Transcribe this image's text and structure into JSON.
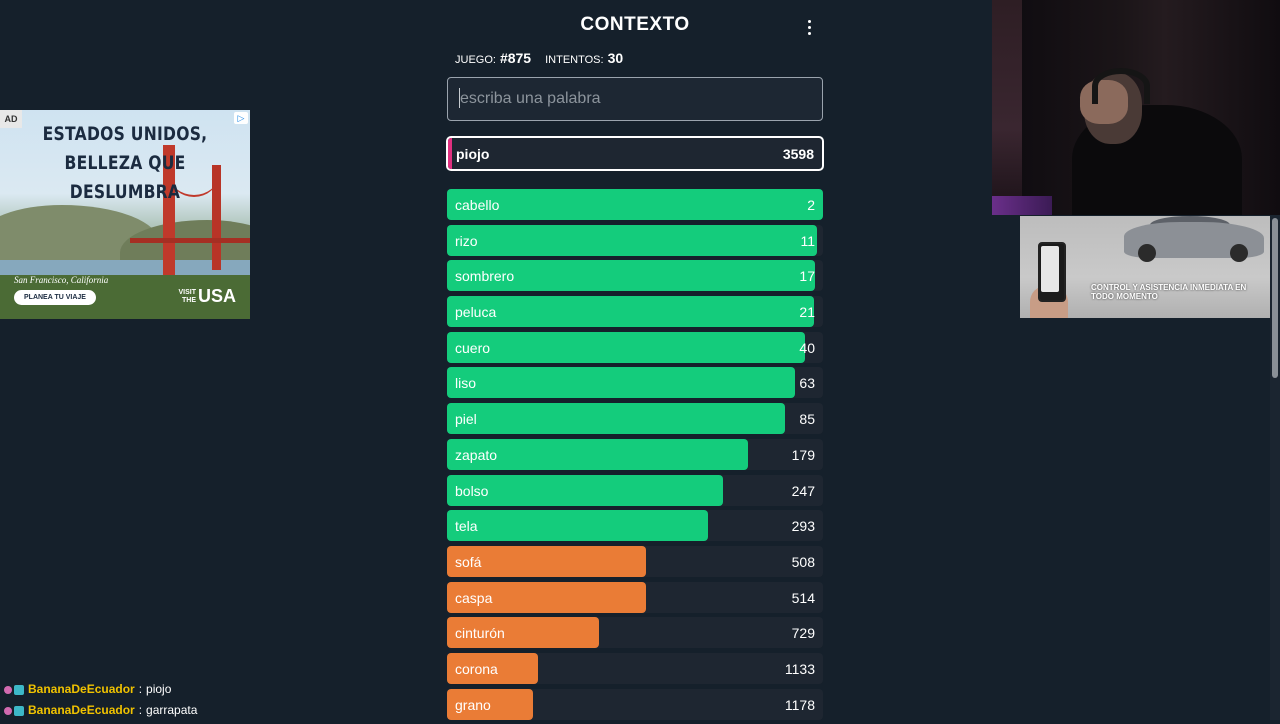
{
  "header": {
    "title": "CONTEXTO"
  },
  "game_info": {
    "game_label": "JUEGO:",
    "game_value": "#875",
    "attempts_label": "INTENTOS:",
    "attempts_value": "30"
  },
  "input": {
    "placeholder": "escriba una palabra",
    "value": ""
  },
  "latest_guess": {
    "word": "piojo",
    "rank": "3598",
    "accent_color": "#e0307f"
  },
  "colors": {
    "green": "#14cc7c",
    "orange": "#ea7c36",
    "bar_bg": "#1e2631",
    "background": "#15202b"
  },
  "guesses": [
    {
      "word": "cabello",
      "rank": "2",
      "color": "green",
      "fill": 1.0
    },
    {
      "word": "rizo",
      "rank": "11",
      "color": "green",
      "fill": 0.985
    },
    {
      "word": "sombrero",
      "rank": "17",
      "color": "green",
      "fill": 0.978
    },
    {
      "word": "peluca",
      "rank": "21",
      "color": "green",
      "fill": 0.975
    },
    {
      "word": "cuero",
      "rank": "40",
      "color": "green",
      "fill": 0.953
    },
    {
      "word": "liso",
      "rank": "63",
      "color": "green",
      "fill": 0.925
    },
    {
      "word": "piel",
      "rank": "85",
      "color": "green",
      "fill": 0.9
    },
    {
      "word": "zapato",
      "rank": "179",
      "color": "green",
      "fill": 0.8
    },
    {
      "word": "bolso",
      "rank": "247",
      "color": "green",
      "fill": 0.735
    },
    {
      "word": "tela",
      "rank": "293",
      "color": "green",
      "fill": 0.693
    },
    {
      "word": "sofá",
      "rank": "508",
      "color": "orange",
      "fill": 0.53
    },
    {
      "word": "caspa",
      "rank": "514",
      "color": "orange",
      "fill": 0.528
    },
    {
      "word": "cinturón",
      "rank": "729",
      "color": "orange",
      "fill": 0.404
    },
    {
      "word": "corona",
      "rank": "1133",
      "color": "orange",
      "fill": 0.243
    },
    {
      "word": "grano",
      "rank": "1178",
      "color": "orange",
      "fill": 0.229
    }
  ],
  "ad_left": {
    "badge": "AD",
    "headline_1": "ESTADOS UNIDOS,",
    "headline_2": "BELLEZA QUE DESLUMBRA",
    "place": "San Francisco, California",
    "cta": "PLANEA TU VIAJE",
    "logo_small": "VISIT THE",
    "logo_big": "USA"
  },
  "ad_right": {
    "text": "CONTROL Y ASISTENCIA INMEDIATA EN TODO MOMENTO"
  },
  "chat": [
    {
      "user": "BananaDeEcuador",
      "sep": ":",
      "message": "piojo"
    },
    {
      "user": "BananaDeEcuador",
      "sep": ":",
      "message": "garrapata"
    }
  ],
  "icons": {
    "menu": "vertical-dots-icon",
    "ad_choices": "ad-choices-icon"
  }
}
